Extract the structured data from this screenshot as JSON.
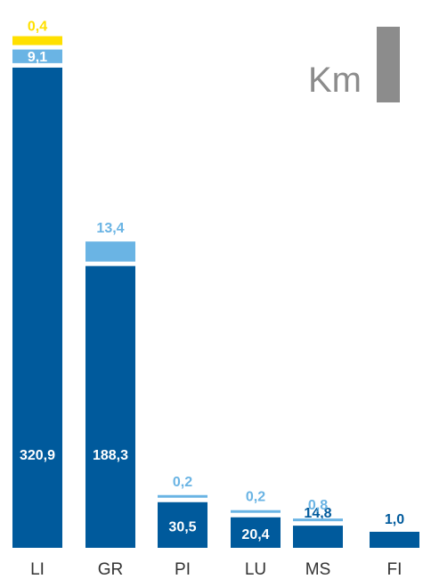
{
  "chart_data": {
    "type": "bar",
    "stacked": true,
    "unit": "Km",
    "categories": [
      "LI",
      "GR",
      "PI",
      "LU",
      "MS",
      "FI"
    ],
    "series": [
      {
        "values": [
          320.9,
          188.3,
          30.5,
          20.4,
          14.8,
          1.0
        ],
        "labels": [
          "320,9",
          "188,3",
          "30,5",
          "20,4",
          "14,8",
          "1,0"
        ],
        "color": "#005a9c",
        "label_color": "#ffffff"
      },
      {
        "values": [
          9.1,
          13.4,
          0.2,
          0.2,
          0.8,
          0
        ],
        "labels": [
          "9,1",
          "13,4",
          "0,2",
          "0,2",
          "0,8",
          ""
        ],
        "color": "#6ab4e4",
        "label_color": "#6ab4e4"
      },
      {
        "values": [
          0.4,
          0,
          0,
          0,
          0,
          0
        ],
        "labels": [
          "0,4",
          "",
          "",
          "",
          "",
          ""
        ],
        "color": "#ffe000",
        "label_color": "#ffe000"
      }
    ],
    "colors": {
      "series1_dark_label": "#005a9c",
      "unit_marker": "#8c8c8c"
    }
  }
}
